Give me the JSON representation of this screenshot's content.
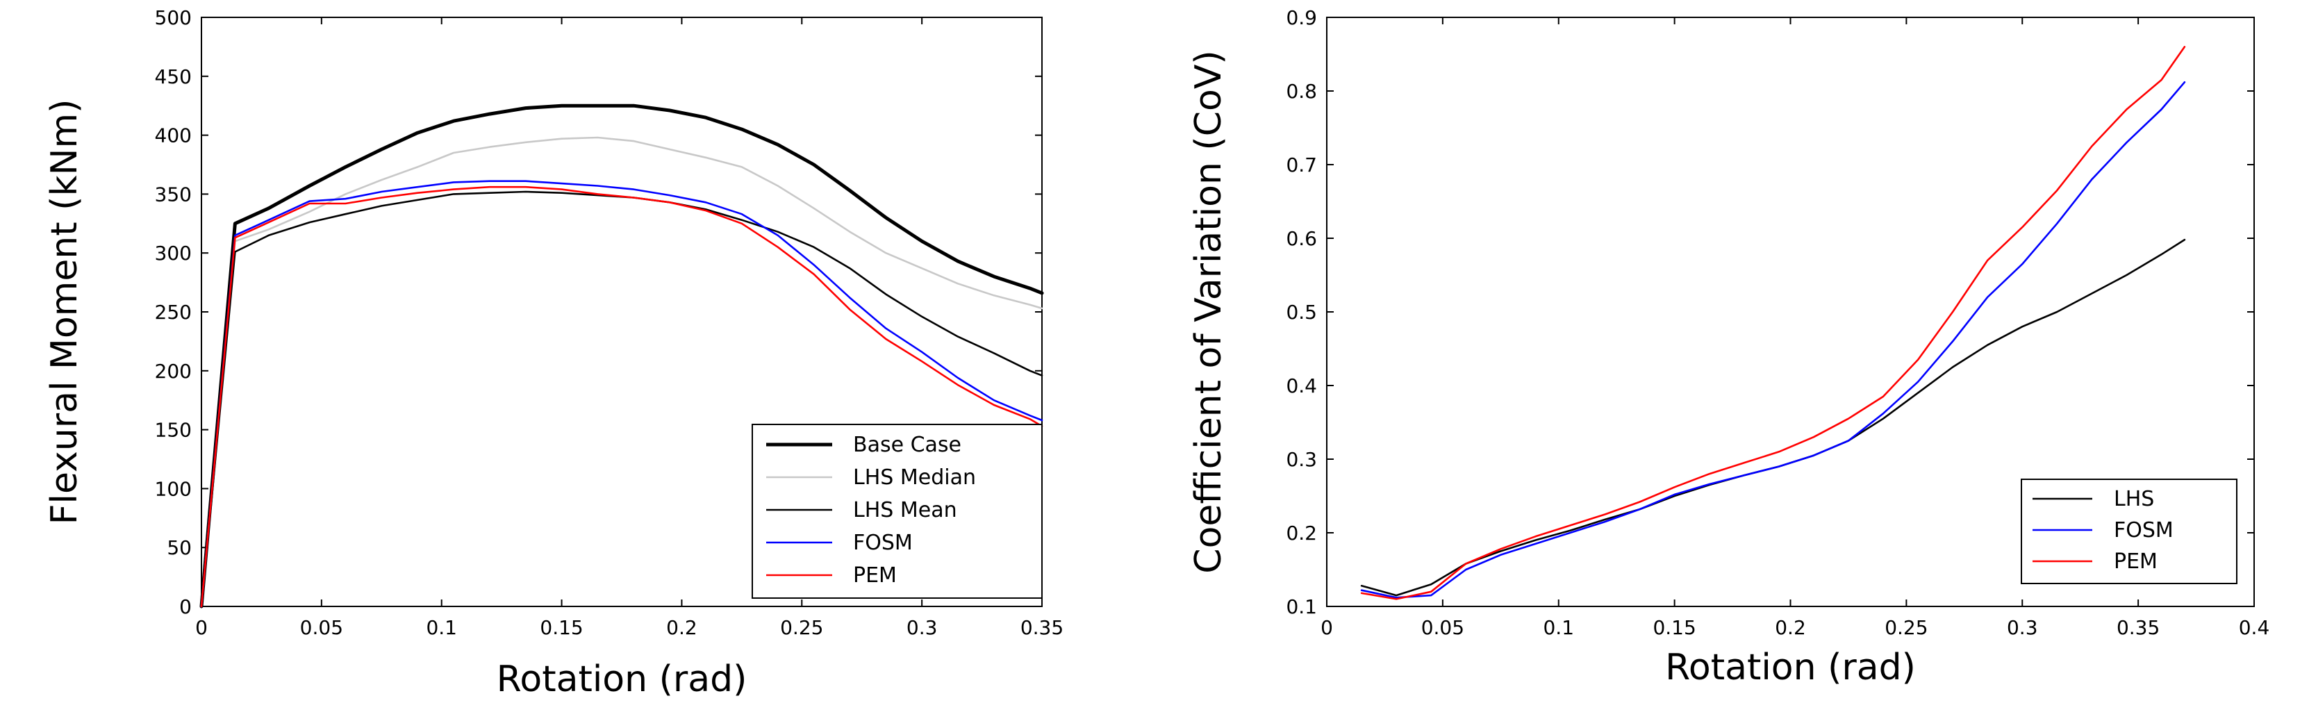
{
  "chart_data": [
    {
      "type": "line",
      "xlabel": "Rotation (rad)",
      "ylabel": "Flexural Moment (kNm)",
      "xlim": [
        0,
        0.35
      ],
      "ylim": [
        0,
        500
      ],
      "xticks": [
        "0",
        "0.05",
        "0.1",
        "0.15",
        "0.2",
        "0.25",
        "0.3",
        "0.35"
      ],
      "yticks": [
        "0",
        "50",
        "100",
        "150",
        "200",
        "250",
        "300",
        "350",
        "400",
        "450",
        "500"
      ],
      "grid": false,
      "legend_position": "lower-right",
      "series": [
        {
          "name": "Base Case",
          "color": "#000000",
          "weight": "thick",
          "x": [
            0,
            0.014,
            0.028,
            0.045,
            0.06,
            0.075,
            0.09,
            0.105,
            0.12,
            0.135,
            0.15,
            0.165,
            0.18,
            0.195,
            0.21,
            0.225,
            0.24,
            0.255,
            0.27,
            0.285,
            0.3,
            0.315,
            0.33,
            0.345,
            0.35
          ],
          "y": [
            0,
            325,
            338,
            357,
            373,
            388,
            402,
            412,
            418,
            423,
            425,
            425,
            425,
            421,
            415,
            405,
            392,
            375,
            353,
            330,
            310,
            293,
            280,
            270,
            266
          ]
        },
        {
          "name": "LHS Median",
          "color": "#c8c8c8",
          "weight": "normal",
          "x": [
            0,
            0.014,
            0.028,
            0.045,
            0.06,
            0.075,
            0.09,
            0.105,
            0.12,
            0.135,
            0.15,
            0.165,
            0.18,
            0.195,
            0.21,
            0.225,
            0.24,
            0.255,
            0.27,
            0.285,
            0.3,
            0.315,
            0.33,
            0.345,
            0.35
          ],
          "y": [
            0,
            310,
            320,
            335,
            350,
            362,
            373,
            385,
            390,
            394,
            397,
            398,
            395,
            388,
            381,
            373,
            357,
            338,
            318,
            300,
            287,
            274,
            264,
            256,
            253
          ]
        },
        {
          "name": "LHS Mean",
          "color": "#000000",
          "weight": "normal",
          "x": [
            0,
            0.014,
            0.028,
            0.045,
            0.06,
            0.075,
            0.09,
            0.105,
            0.12,
            0.135,
            0.15,
            0.165,
            0.18,
            0.195,
            0.21,
            0.225,
            0.24,
            0.255,
            0.27,
            0.285,
            0.3,
            0.315,
            0.33,
            0.345,
            0.35
          ],
          "y": [
            0,
            301,
            315,
            326,
            333,
            340,
            345,
            350,
            351,
            352,
            351,
            349,
            347,
            343,
            337,
            328,
            318,
            305,
            287,
            265,
            246,
            229,
            215,
            200,
            196
          ]
        },
        {
          "name": "FOSM",
          "color": "#0000ff",
          "weight": "normal",
          "x": [
            0,
            0.014,
            0.028,
            0.045,
            0.06,
            0.075,
            0.09,
            0.105,
            0.12,
            0.135,
            0.15,
            0.165,
            0.18,
            0.195,
            0.21,
            0.225,
            0.24,
            0.255,
            0.27,
            0.285,
            0.3,
            0.315,
            0.33,
            0.345,
            0.35
          ],
          "y": [
            0,
            315,
            328,
            344,
            346,
            352,
            356,
            360,
            361,
            361,
            359,
            357,
            354,
            349,
            343,
            333,
            315,
            290,
            262,
            236,
            216,
            194,
            175,
            162,
            158
          ]
        },
        {
          "name": "PEM",
          "color": "#ff0000",
          "weight": "normal",
          "x": [
            0,
            0.014,
            0.028,
            0.045,
            0.06,
            0.075,
            0.09,
            0.105,
            0.12,
            0.135,
            0.15,
            0.165,
            0.18,
            0.195,
            0.21,
            0.225,
            0.24,
            0.255,
            0.27,
            0.285,
            0.3,
            0.315,
            0.33,
            0.345,
            0.35
          ],
          "y": [
            0,
            313,
            326,
            342,
            342,
            347,
            351,
            354,
            356,
            356,
            354,
            350,
            347,
            343,
            336,
            325,
            305,
            282,
            252,
            227,
            208,
            188,
            171,
            159,
            153
          ]
        }
      ]
    },
    {
      "type": "line",
      "xlabel": "Rotation (rad)",
      "ylabel": "Coefficient of Variation (CoV)",
      "xlim": [
        0,
        0.4
      ],
      "ylim": [
        0.1,
        0.9
      ],
      "xticks": [
        "0",
        "0.05",
        "0.1",
        "0.15",
        "0.2",
        "0.25",
        "0.3",
        "0.35",
        "0.4"
      ],
      "yticks": [
        "0.1",
        "0.2",
        "0.3",
        "0.4",
        "0.5",
        "0.6",
        "0.7",
        "0.8",
        "0.9"
      ],
      "grid": false,
      "legend_position": "lower-right",
      "series": [
        {
          "name": "LHS",
          "color": "#000000",
          "weight": "normal",
          "x": [
            0.015,
            0.03,
            0.045,
            0.06,
            0.075,
            0.09,
            0.105,
            0.12,
            0.135,
            0.15,
            0.165,
            0.18,
            0.195,
            0.21,
            0.225,
            0.24,
            0.255,
            0.27,
            0.285,
            0.3,
            0.315,
            0.33,
            0.345,
            0.36,
            0.37
          ],
          "y": [
            0.128,
            0.115,
            0.13,
            0.158,
            0.175,
            0.19,
            0.203,
            0.218,
            0.232,
            0.25,
            0.265,
            0.278,
            0.29,
            0.305,
            0.325,
            0.355,
            0.39,
            0.425,
            0.455,
            0.48,
            0.5,
            0.525,
            0.55,
            0.578,
            0.598
          ]
        },
        {
          "name": "FOSM",
          "color": "#0000ff",
          "weight": "normal",
          "x": [
            0.015,
            0.03,
            0.045,
            0.06,
            0.075,
            0.09,
            0.105,
            0.12,
            0.135,
            0.15,
            0.165,
            0.18,
            0.195,
            0.21,
            0.225,
            0.24,
            0.255,
            0.27,
            0.285,
            0.3,
            0.315,
            0.33,
            0.345,
            0.36,
            0.37
          ],
          "y": [
            0.122,
            0.112,
            0.115,
            0.15,
            0.17,
            0.185,
            0.2,
            0.215,
            0.232,
            0.252,
            0.266,
            0.278,
            0.29,
            0.305,
            0.325,
            0.362,
            0.405,
            0.46,
            0.52,
            0.565,
            0.62,
            0.68,
            0.73,
            0.775,
            0.812
          ]
        },
        {
          "name": "PEM",
          "color": "#ff0000",
          "weight": "normal",
          "x": [
            0.015,
            0.03,
            0.045,
            0.06,
            0.075,
            0.09,
            0.105,
            0.12,
            0.135,
            0.15,
            0.165,
            0.18,
            0.195,
            0.21,
            0.225,
            0.24,
            0.255,
            0.27,
            0.285,
            0.3,
            0.315,
            0.33,
            0.345,
            0.36,
            0.37
          ],
          "y": [
            0.118,
            0.11,
            0.12,
            0.158,
            0.178,
            0.195,
            0.21,
            0.225,
            0.242,
            0.262,
            0.28,
            0.295,
            0.31,
            0.33,
            0.355,
            0.385,
            0.435,
            0.5,
            0.57,
            0.615,
            0.665,
            0.725,
            0.775,
            0.815,
            0.86
          ]
        }
      ]
    }
  ]
}
